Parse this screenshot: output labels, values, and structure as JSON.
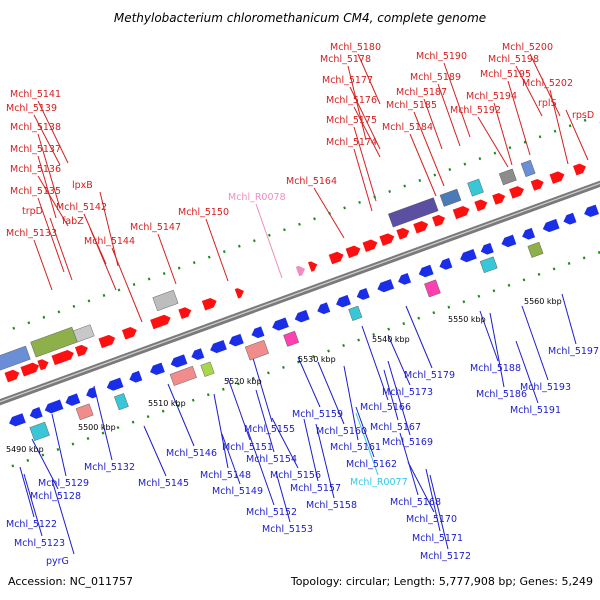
{
  "title": "Methylobacterium chloromethanicum CM4, complete genome",
  "accession": "Accession: NC_011757",
  "summary": "Topology: circular; Length: 5,777,908 bp; Genes: 5,249",
  "colors": {
    "forward_label": "#d42020",
    "reverse_label": "#1c1ccc",
    "rna_forward_label": "#f08cc0",
    "rna_reverse_label": "#32c8e6",
    "forward_arrow": "#ff1010",
    "reverse_arrow": "#1a2ee8",
    "backbone": "#7a7a7a",
    "tick": "#1a8a1a"
  },
  "ruler_labels": [
    "5490 kbp",
    "5500 kbp",
    "5510 kbp",
    "5520 kbp",
    "5530 kbp",
    "5540 kbp",
    "5550 kbp",
    "5560 kbp"
  ],
  "forward_genes": [
    "Mchl_5133",
    "trpD",
    "Mchl_5135",
    "Mchl_5136",
    "Mchl_5137",
    "Mchl_5138",
    "Mchl_5139",
    "Mchl_5141",
    "lpxB",
    "Mchl_5142",
    "fabZ",
    "Mchl_5144",
    "Mchl_5147",
    "Mchl_5150",
    "Mchl_R0078",
    "Mchl_5164",
    "Mchl_5174",
    "Mchl_5175",
    "Mchl_5176",
    "Mchl_5177",
    "Mchl_5178",
    "Mchl_5180",
    "Mchl_5184",
    "Mchl_5185",
    "Mchl_5187",
    "Mchl_5189",
    "Mchl_5190",
    "Mchl_5192",
    "Mchl_5194",
    "Mchl_5195",
    "Mchl_5198",
    "Mchl_5200",
    "Mchl_5202",
    "rplS",
    "rpsD"
  ],
  "reverse_genes": [
    "Mchl_5122",
    "Mchl_5123",
    "pyrG",
    "Mchl_5128",
    "Mchl_5129",
    "Mchl_5132",
    "Mchl_5145",
    "Mchl_5146",
    "Mchl_5148",
    "Mchl_5149",
    "Mchl_5151",
    "Mchl_5152",
    "Mchl_5153",
    "Mchl_5154",
    "Mchl_5155",
    "Mchl_5156",
    "Mchl_5157",
    "Mchl_5158",
    "Mchl_5159",
    "Mchl_5160",
    "Mchl_5161",
    "Mchl_5162",
    "Mchl_R0077",
    "Mchl_5166",
    "Mchl_5167",
    "Mchl_5168",
    "Mchl_5169",
    "Mchl_5170",
    "Mchl_5171",
    "Mchl_5172",
    "Mchl_5173",
    "Mchl_5179",
    "Mchl_5186",
    "Mchl_5188",
    "Mchl_5191",
    "Mchl_5193",
    "Mchl_5197"
  ]
}
